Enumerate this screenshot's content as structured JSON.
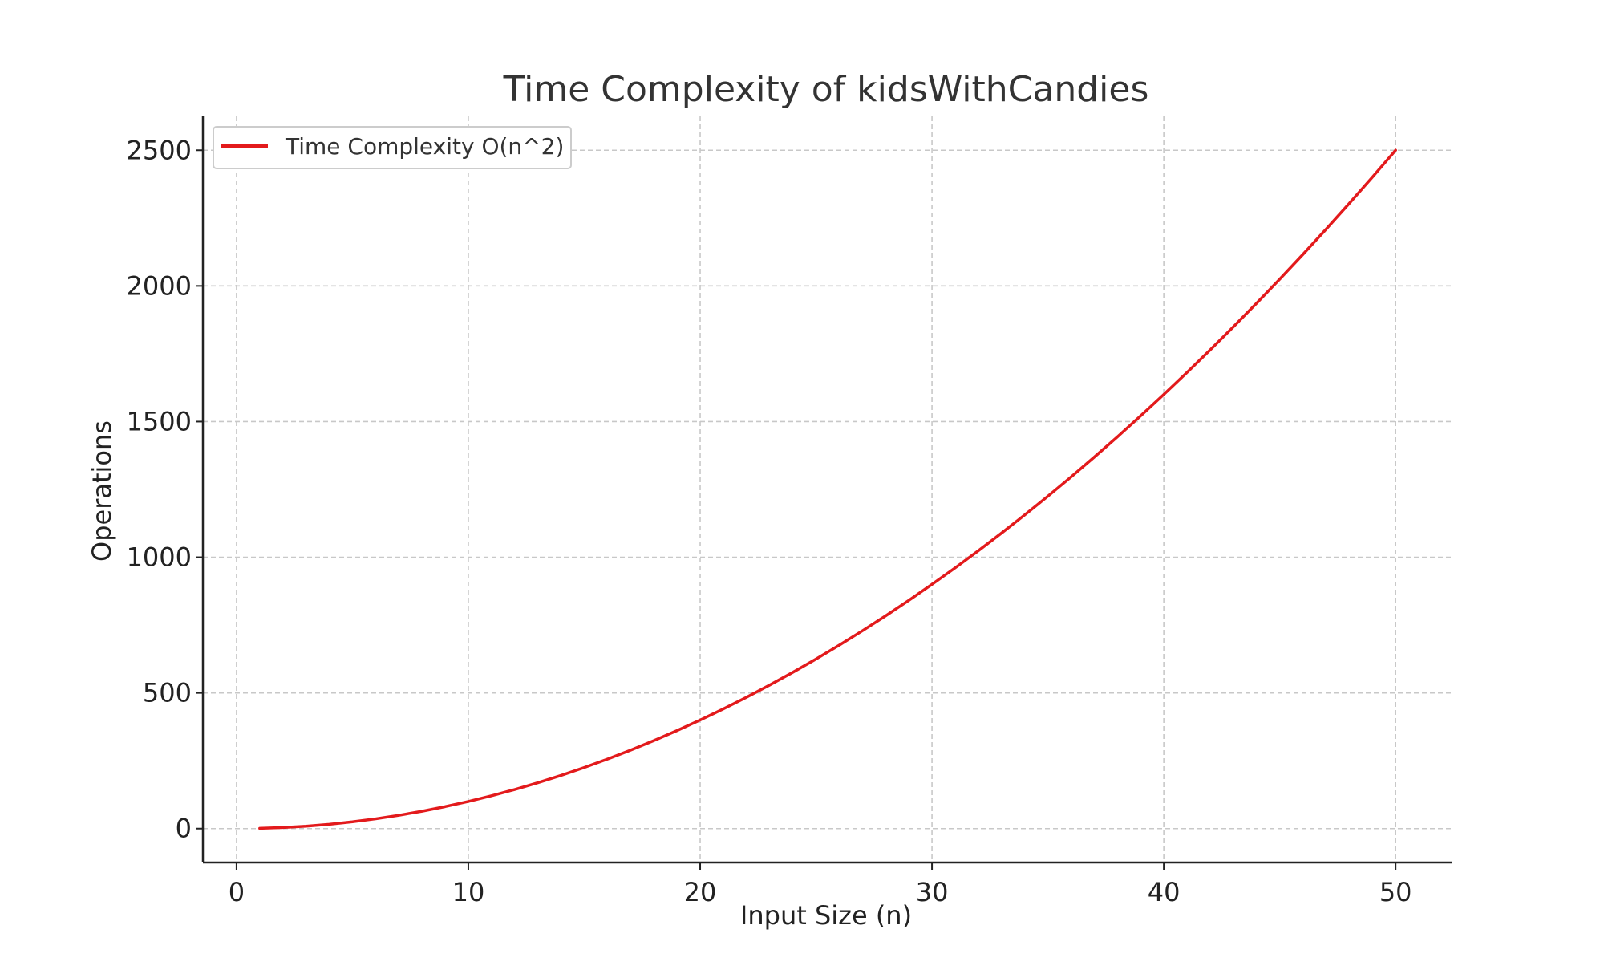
{
  "chart_data": {
    "type": "line",
    "title": "Time Complexity of kidsWithCandies",
    "xlabel": "Input Size (n)",
    "ylabel": "Operations",
    "xlim": [
      -1.45,
      52.45
    ],
    "ylim": [
      -124.95,
      2624.95
    ],
    "x_ticks": [
      0,
      10,
      20,
      30,
      40,
      50
    ],
    "y_ticks": [
      0,
      500,
      1000,
      1500,
      2000,
      2500
    ],
    "x_tick_labels": [
      "0",
      "10",
      "20",
      "30",
      "40",
      "50"
    ],
    "y_tick_labels": [
      "0",
      "500",
      "1000",
      "1500",
      "2000",
      "2500"
    ],
    "grid": true,
    "legend_position": "upper-left",
    "series": [
      {
        "name": "Time Complexity O(n^2)",
        "color": "#e31a1c",
        "x": [
          1,
          2,
          3,
          4,
          5,
          6,
          7,
          8,
          9,
          10,
          11,
          12,
          13,
          14,
          15,
          16,
          17,
          18,
          19,
          20,
          21,
          22,
          23,
          24,
          25,
          26,
          27,
          28,
          29,
          30,
          31,
          32,
          33,
          34,
          35,
          36,
          37,
          38,
          39,
          40,
          41,
          42,
          43,
          44,
          45,
          46,
          47,
          48,
          49,
          50
        ],
        "y": [
          1,
          4,
          9,
          16,
          25,
          36,
          49,
          64,
          81,
          100,
          121,
          144,
          169,
          196,
          225,
          256,
          289,
          324,
          361,
          400,
          441,
          484,
          529,
          576,
          625,
          676,
          729,
          784,
          841,
          900,
          961,
          1024,
          1089,
          1156,
          1225,
          1296,
          1369,
          1444,
          1521,
          1600,
          1681,
          1764,
          1849,
          1936,
          2025,
          2116,
          2209,
          2304,
          2401,
          2500
        ]
      }
    ]
  }
}
